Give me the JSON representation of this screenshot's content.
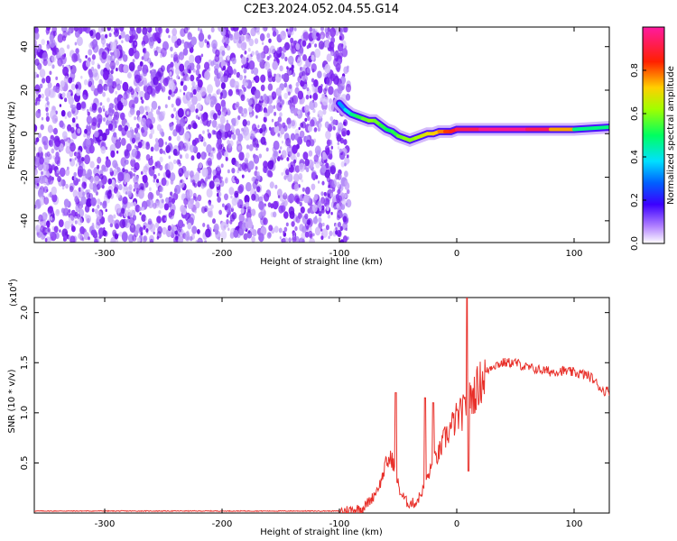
{
  "title": "C2E3.2024.052.04.55.G14",
  "colors": {
    "snr_line": "#e8302a",
    "noise_purple": "#7a1ff0",
    "frame": "#000000"
  },
  "chart_data": [
    {
      "type": "heatmap",
      "xlabel": "Height of straight line (km)",
      "ylabel": "Frequency (Hz)",
      "xlim": [
        -360,
        130
      ],
      "ylim": [
        -50,
        49
      ],
      "x_ticks": [
        -300,
        -200,
        -100,
        0,
        100
      ],
      "y_ticks": [
        -40,
        -20,
        0,
        20,
        40
      ],
      "colorbar": {
        "label": "Normalized spectral amplitude",
        "range": [
          0,
          1
        ],
        "ticks": [
          0.0,
          0.2,
          0.4,
          0.6,
          0.8
        ],
        "colormap": "white-purple-blue-cyan-green-yellow-red-magenta"
      },
      "noise_region_x": [
        -360,
        -92
      ],
      "signal_track": {
        "x": [
          -100,
          -95,
          -90,
          -85,
          -80,
          -75,
          -70,
          -65,
          -60,
          -55,
          -50,
          -45,
          -40,
          -35,
          -30,
          -25,
          -20,
          -15,
          -10,
          -5,
          0,
          20,
          40,
          60,
          80,
          100,
          130
        ],
        "freq": [
          14,
          11,
          9,
          8,
          7,
          6,
          6,
          4,
          2,
          1,
          -1,
          -2,
          -3,
          -2,
          -1,
          0,
          0,
          1,
          1,
          1,
          2,
          2,
          2,
          2,
          2,
          2,
          3
        ],
        "amplitude": [
          0.3,
          0.35,
          0.45,
          0.5,
          0.55,
          0.6,
          0.6,
          0.55,
          0.5,
          0.5,
          0.55,
          0.6,
          0.6,
          0.6,
          0.65,
          0.7,
          0.7,
          0.75,
          0.8,
          0.85,
          0.9,
          0.95,
          1.0,
          0.95,
          0.9,
          0.6,
          0.35
        ]
      }
    },
    {
      "type": "line",
      "xlabel": "Height of straight line (km)",
      "ylabel": "SNR (10 * v/v)",
      "y_scale_label": "(x10",
      "y_scale_exp": "4",
      "xlim": [
        -360,
        130
      ],
      "ylim": [
        0,
        2.15
      ],
      "x_ticks": [
        -300,
        -200,
        -100,
        0,
        100
      ],
      "y_ticks": [
        0.5,
        1.0,
        1.5,
        2.0
      ],
      "series": [
        {
          "x": [
            -360,
            -300,
            -250,
            -200,
            -150,
            -110,
            -100,
            -90,
            -80,
            -72,
            -65,
            -60,
            -55,
            -52,
            -50,
            -48,
            -45,
            -42,
            -40,
            -35,
            -30,
            -25,
            -20,
            -15,
            -10,
            -5,
            0,
            5,
            8,
            10,
            15,
            20,
            25,
            30,
            40,
            50,
            60,
            70,
            80,
            90,
            100,
            110,
            115,
            120,
            125,
            130
          ],
          "y": [
            0.02,
            0.02,
            0.02,
            0.02,
            0.02,
            0.02,
            0.02,
            0.03,
            0.05,
            0.15,
            0.3,
            0.5,
            0.55,
            0.35,
            0.3,
            0.2,
            0.15,
            0.1,
            0.1,
            0.1,
            0.2,
            0.35,
            0.5,
            0.6,
            0.75,
            0.85,
            0.95,
            1.0,
            1.05,
            1.1,
            1.2,
            1.3,
            1.4,
            1.47,
            1.5,
            1.5,
            1.45,
            1.43,
            1.41,
            1.42,
            1.4,
            1.38,
            1.35,
            1.28,
            1.22,
            1.22
          ],
          "peaks": [
            {
              "x": -52,
              "y": 1.2
            },
            {
              "x": -27,
              "y": 1.15
            },
            {
              "x": -20,
              "y": 1.1
            },
            {
              "x": 9,
              "y": 2.15
            },
            {
              "x": 10,
              "y": 0.42
            }
          ]
        }
      ]
    }
  ]
}
